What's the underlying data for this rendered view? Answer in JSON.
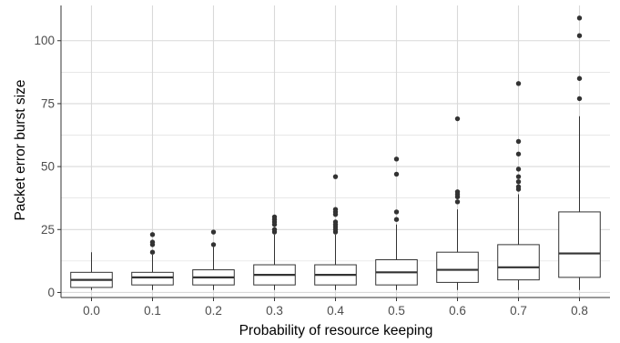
{
  "chart_data": {
    "type": "boxplot",
    "xlabel": "Probability of resource keeping",
    "ylabel": "Packet error burst size",
    "categories": [
      "0.0",
      "0.1",
      "0.2",
      "0.3",
      "0.4",
      "0.5",
      "0.6",
      "0.7",
      "0.8"
    ],
    "ylim": [
      -2,
      114
    ],
    "yticks": [
      0,
      25,
      50,
      75,
      100
    ],
    "grid": true,
    "boxes": [
      {
        "category": "0.0",
        "whisker_low": 1,
        "q1": 2,
        "median": 5,
        "q3": 8,
        "whisker_high": 16,
        "outliers": []
      },
      {
        "category": "0.1",
        "whisker_low": 1,
        "q1": 3,
        "median": 6,
        "q3": 8,
        "whisker_high": 15,
        "outliers": [
          16,
          19,
          20,
          23
        ]
      },
      {
        "category": "0.2",
        "whisker_low": 1,
        "q1": 3,
        "median": 6,
        "q3": 9,
        "whisker_high": 18,
        "outliers": [
          19,
          24
        ]
      },
      {
        "category": "0.3",
        "whisker_low": 1,
        "q1": 3,
        "median": 7,
        "q3": 11,
        "whisker_high": 23,
        "outliers": [
          24,
          25,
          27,
          28,
          29,
          30
        ]
      },
      {
        "category": "0.4",
        "whisker_low": 1,
        "q1": 3,
        "median": 7,
        "q3": 11,
        "whisker_high": 23,
        "outliers": [
          24,
          25,
          26,
          27,
          28,
          31,
          32,
          33,
          46
        ]
      },
      {
        "category": "0.5",
        "whisker_low": 1,
        "q1": 3,
        "median": 8,
        "q3": 13,
        "whisker_high": 27,
        "outliers": [
          29,
          32,
          47,
          53
        ]
      },
      {
        "category": "0.6",
        "whisker_low": 1,
        "q1": 4,
        "median": 9,
        "q3": 16,
        "whisker_high": 33,
        "outliers": [
          36,
          38,
          39,
          40,
          69
        ]
      },
      {
        "category": "0.7",
        "whisker_low": 1,
        "q1": 5,
        "median": 10,
        "q3": 19,
        "whisker_high": 39,
        "outliers": [
          41,
          42,
          44,
          46,
          49,
          55,
          60,
          83
        ]
      },
      {
        "category": "0.8",
        "whisker_low": 1,
        "q1": 6,
        "median": 15.5,
        "q3": 32,
        "whisker_high": 70,
        "outliers": [
          77,
          85,
          102,
          109
        ]
      }
    ],
    "colors": {
      "grid": "#d9d9d9",
      "axis": "#333333",
      "box": "#333333",
      "outlier": "#333333",
      "background": "#ffffff"
    }
  }
}
